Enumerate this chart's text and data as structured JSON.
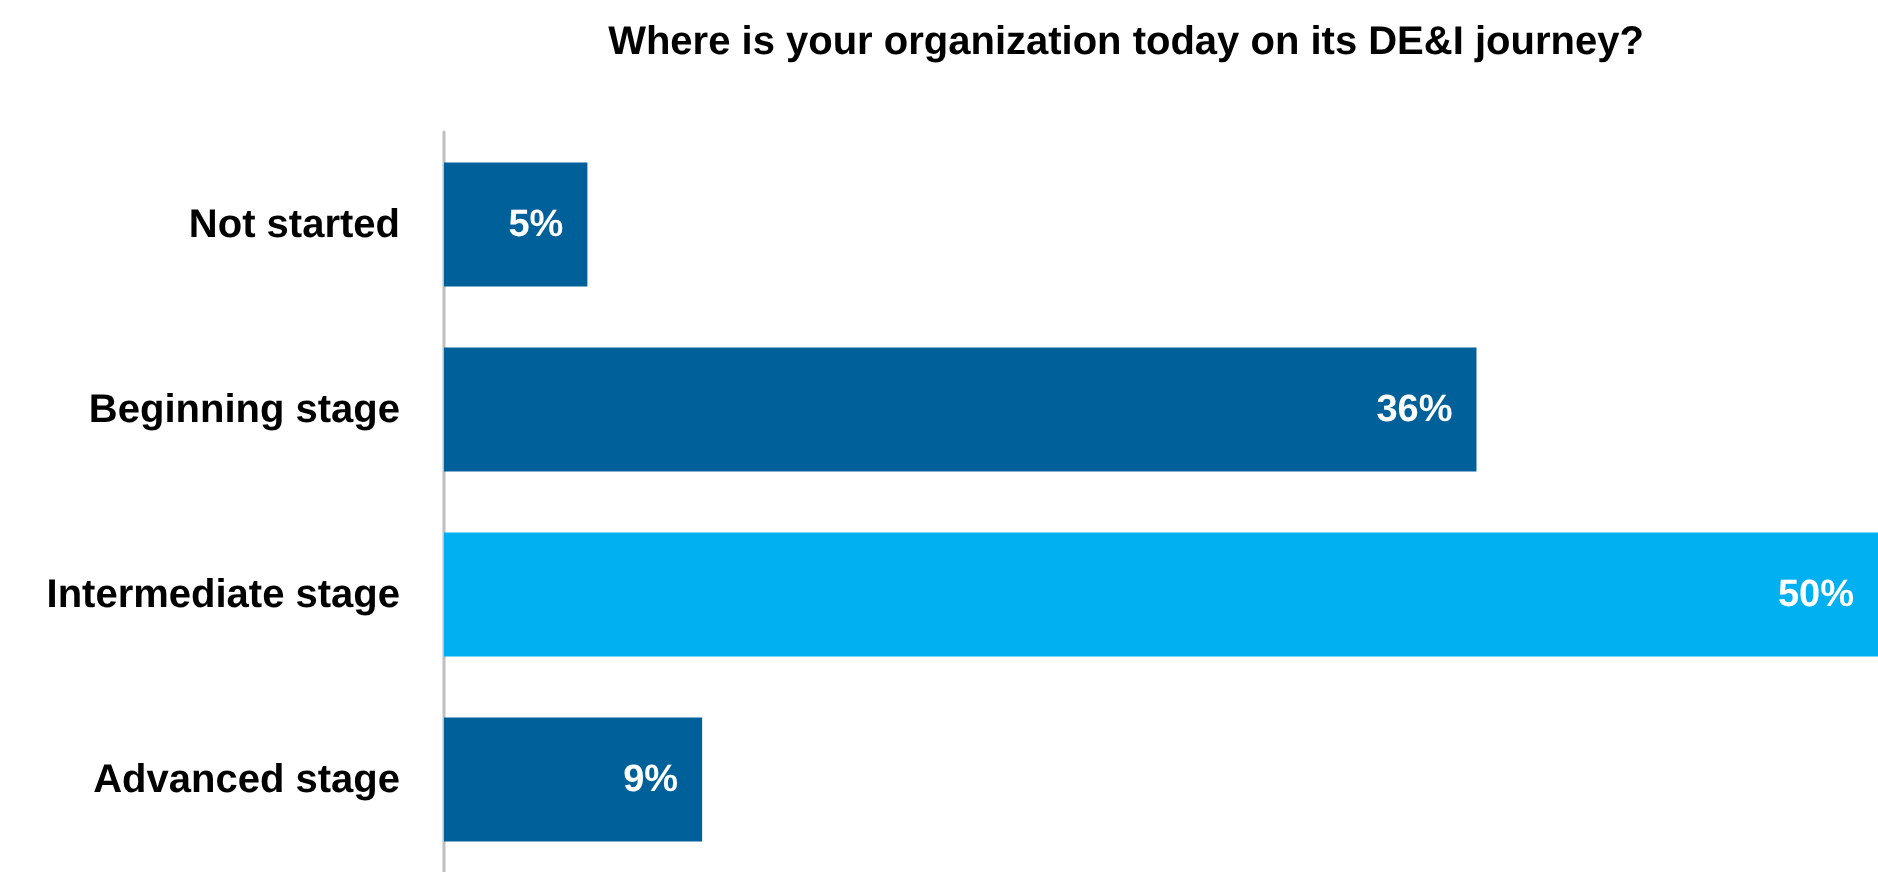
{
  "chart_data": {
    "type": "bar",
    "orientation": "horizontal",
    "title": "Where is your organization today on its DE&I journey?",
    "categories": [
      "Not started",
      "Beginning stage",
      "Intermediate stage",
      "Advanced stage"
    ],
    "values": [
      5,
      36,
      50,
      9
    ],
    "colors": [
      "#00619a",
      "#00619a",
      "#00b0f0",
      "#00619a"
    ],
    "value_labels": [
      "5%",
      "36%",
      "50%",
      "9%"
    ],
    "tick_labels": "y"
  }
}
